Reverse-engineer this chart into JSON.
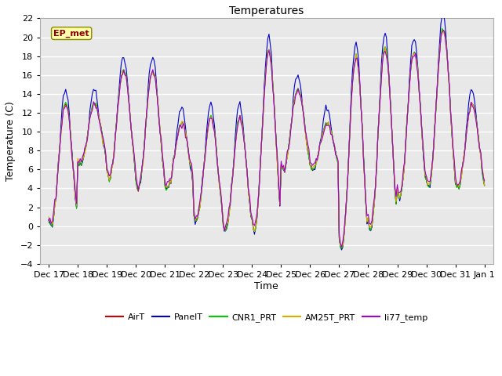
{
  "title": "Temperatures",
  "ylabel": "Temperature (C)",
  "xlabel": "Time",
  "ylim": [
    -4,
    22
  ],
  "yticks": [
    -4,
    -2,
    0,
    2,
    4,
    6,
    8,
    10,
    12,
    14,
    16,
    18,
    20,
    22
  ],
  "annotation_text": "EP_met",
  "line_colors": {
    "AirT": "#cc0000",
    "PanelT": "#0000cc",
    "CNR1_PRT": "#00cc00",
    "AM25T_PRT": "#ddaa00",
    "li77_temp": "#aa00cc"
  },
  "legend_colors": [
    "#cc0000",
    "#0000cc",
    "#00cc00",
    "#ddaa00",
    "#aa00cc"
  ],
  "legend_labels": [
    "AirT",
    "PanelT",
    "CNR1_PRT",
    "AM25T_PRT",
    "li77_temp"
  ],
  "background_color": "#e8e8e8",
  "figure_color": "#ffffff",
  "n_days": 15,
  "tick_labels": [
    "Dec 17",
    "Dec 18",
    "Dec 19",
    "Dec 20",
    "Dec 21",
    "Dec 22",
    "Dec 23",
    "Dec 24",
    "Dec 25",
    "Dec 26",
    "Dec 27",
    "Dec 28",
    "Dec 29",
    "Dec 30",
    "Dec 31",
    "Jan 1"
  ]
}
